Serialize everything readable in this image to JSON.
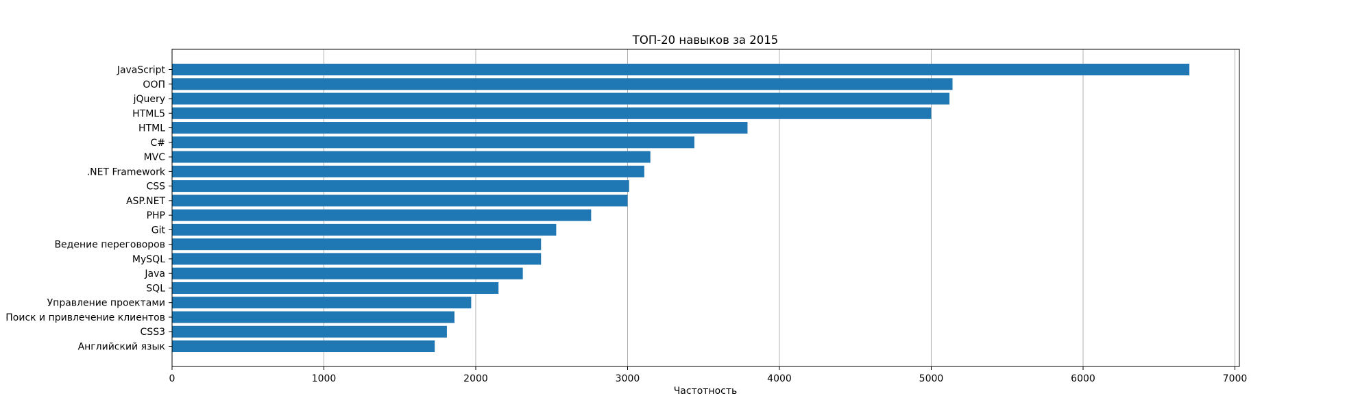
{
  "chart_data": {
    "type": "bar",
    "orientation": "horizontal",
    "title": "ТОП-20 навыков за 2015",
    "xlabel": "Частотность",
    "ylabel": "",
    "xlim": [
      0,
      7000
    ],
    "xticks": [
      0,
      1000,
      2000,
      3000,
      4000,
      5000,
      6000,
      7000
    ],
    "grid": "x",
    "bar_color": "#1f77b4",
    "categories": [
      "JavaScript",
      "ООП",
      "jQuery",
      "HTML5",
      "HTML",
      "C#",
      "MVC",
      ".NET Framework",
      "CSS",
      "ASP.NET",
      "PHP",
      "Git",
      "Ведение переговоров",
      "MySQL",
      "Java",
      "SQL",
      "Управление проектами",
      "Поиск и привлечение клиентов",
      "CSS3",
      "Английский язык"
    ],
    "values": [
      6700,
      5140,
      5120,
      5000,
      3790,
      3440,
      3150,
      3110,
      3010,
      3000,
      2760,
      2530,
      2430,
      2430,
      2310,
      2150,
      1970,
      1860,
      1810,
      1730
    ]
  }
}
